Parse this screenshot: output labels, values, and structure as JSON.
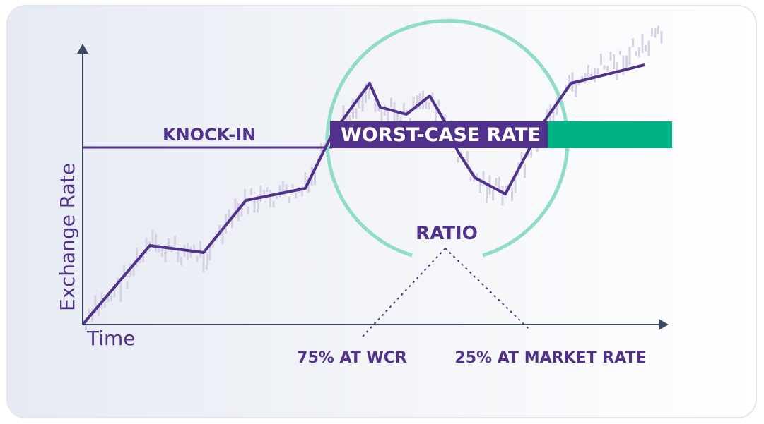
{
  "diagram": {
    "axes": {
      "y_label": "Exchange Rate",
      "x_label": "Time"
    },
    "labels": {
      "knock_in": "KNOCK-IN",
      "worst_case_rate": "WORST-CASE RATE",
      "ratio": "RATIO",
      "ratio_left": "75% AT WCR",
      "ratio_right": "25% AT MARKET RATE"
    }
  }
}
